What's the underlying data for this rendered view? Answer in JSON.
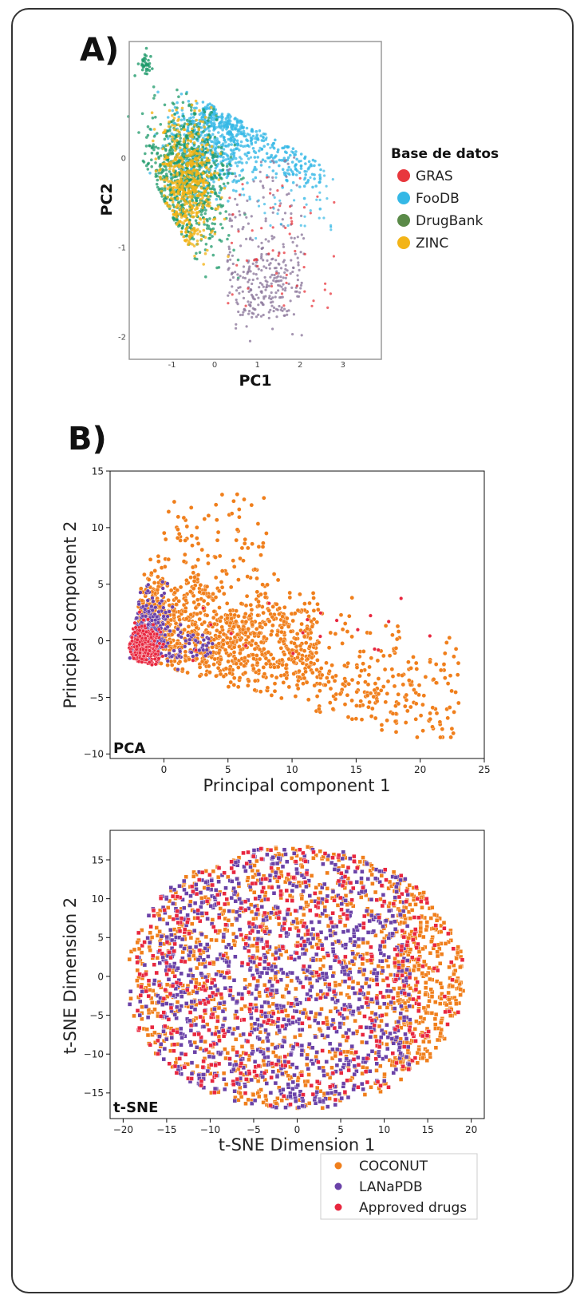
{
  "figure": {
    "panel_a_letter": "A)",
    "panel_b_letter": "B)"
  },
  "chart_data": [
    {
      "id": "panel-a",
      "type": "scatter",
      "title": "",
      "xlabel": "PC1",
      "ylabel": "PC2",
      "xlim": [
        -2.0,
        3.9
      ],
      "ylim": [
        -2.25,
        1.3
      ],
      "xticks": [
        -1,
        0,
        1,
        2,
        3
      ],
      "yticks": [
        -2,
        -1,
        0
      ],
      "grid": false,
      "legend_title": "Base de datos",
      "legend_position": "right",
      "series": [
        {
          "name": "GRAS",
          "color": "#e8373d"
        },
        {
          "name": "FooDB",
          "color": "#35b8e6"
        },
        {
          "name": "DrugBank",
          "color": "#5a8a48"
        },
        {
          "name": "ZINC",
          "color": "#f3b417"
        }
      ],
      "dot_colors": {
        "GRAS_muted": "#8e7a9e",
        "DrugBank_points": "#1e9a6a"
      }
    },
    {
      "id": "panel-b-pca",
      "type": "scatter",
      "title": "",
      "xlabel": "Principal component 1",
      "ylabel": "Principal component 2",
      "corner_label": "PCA",
      "xlim": [
        -4.2,
        25
      ],
      "ylim": [
        -10.4,
        15
      ],
      "xticks": [
        0,
        5,
        10,
        15,
        20,
        25
      ],
      "yticks": [
        -10,
        -5,
        0,
        5,
        10,
        15
      ],
      "grid": false,
      "series": [
        {
          "name": "COCONUT",
          "color": "#f07f1c"
        },
        {
          "name": "LANaPDB",
          "color": "#6a42a8"
        },
        {
          "name": "Approved drugs",
          "color": "#e8273f"
        }
      ]
    },
    {
      "id": "panel-b-tsne",
      "type": "scatter",
      "title": "",
      "xlabel": "t-SNE Dimension 1",
      "ylabel": "t-SNE Dimension 2",
      "corner_label": "t-SNE",
      "xlim": [
        -21.5,
        21.5
      ],
      "ylim": [
        -18.3,
        18.8
      ],
      "xticks": [
        -20,
        -15,
        -10,
        -5,
        0,
        5,
        10,
        15,
        20
      ],
      "yticks": [
        -15,
        -10,
        -5,
        0,
        5,
        10,
        15
      ],
      "grid": false,
      "legend_position": "bottom-right, below axes",
      "series": [
        {
          "name": "COCONUT",
          "color": "#f07f1c"
        },
        {
          "name": "LANaPDB",
          "color": "#6a42a8"
        },
        {
          "name": "Approved drugs",
          "color": "#e8273f"
        }
      ]
    }
  ]
}
